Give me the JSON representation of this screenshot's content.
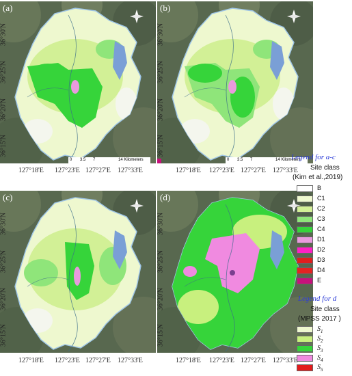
{
  "panels": [
    {
      "label": "(a)",
      "variant": "a"
    },
    {
      "label": "(b)",
      "variant": "b"
    },
    {
      "label": "(c)",
      "variant": "c"
    },
    {
      "label": "(d)",
      "variant": "d"
    }
  ],
  "lat_labels": [
    "36°30'N",
    "36°25'N",
    "36°20'N",
    "36°15'N"
  ],
  "lon_labels": [
    "127°18'E",
    "127°23'E",
    "127°27'E",
    "127°33'E"
  ],
  "scale": {
    "zero": "0",
    "mid1": "3.5",
    "mid2": "7",
    "end": "14 Kilometers"
  },
  "legend_ac": {
    "title": "Legend for a-c",
    "subtitle_line1": "Site class",
    "subtitle_line2": "(Kim et al.,2019)",
    "items": [
      {
        "label": "B",
        "color": "#ffffff"
      },
      {
        "label": "C1",
        "color": "#eef8cf"
      },
      {
        "label": "C2",
        "color": "#d2f096"
      },
      {
        "label": "C3",
        "color": "#8fe57a"
      },
      {
        "label": "C4",
        "color": "#36d43a"
      },
      {
        "label": "D1",
        "color": "#e99ade"
      },
      {
        "label": "D2",
        "color": "#ff1fc4"
      },
      {
        "label": "D3",
        "color": "#e01e1e"
      },
      {
        "label": "D4",
        "color": "#e52222"
      },
      {
        "label": "E",
        "color": "#c7117b"
      }
    ]
  },
  "legend_d": {
    "title": "Legend for d",
    "subtitle_line1": "Site class",
    "subtitle_line2": "(MPSS 2017 )",
    "items": [
      {
        "label": "S1",
        "color": "#eef8cf"
      },
      {
        "label": "S2",
        "color": "#c8f07e"
      },
      {
        "label": "S3",
        "color": "#36d43a"
      },
      {
        "label": "S4",
        "color": "#f08ae0"
      },
      {
        "label": "S5",
        "color": "#e21b1b"
      }
    ]
  },
  "icons": {
    "north_arrow": "north-arrow-icon"
  }
}
